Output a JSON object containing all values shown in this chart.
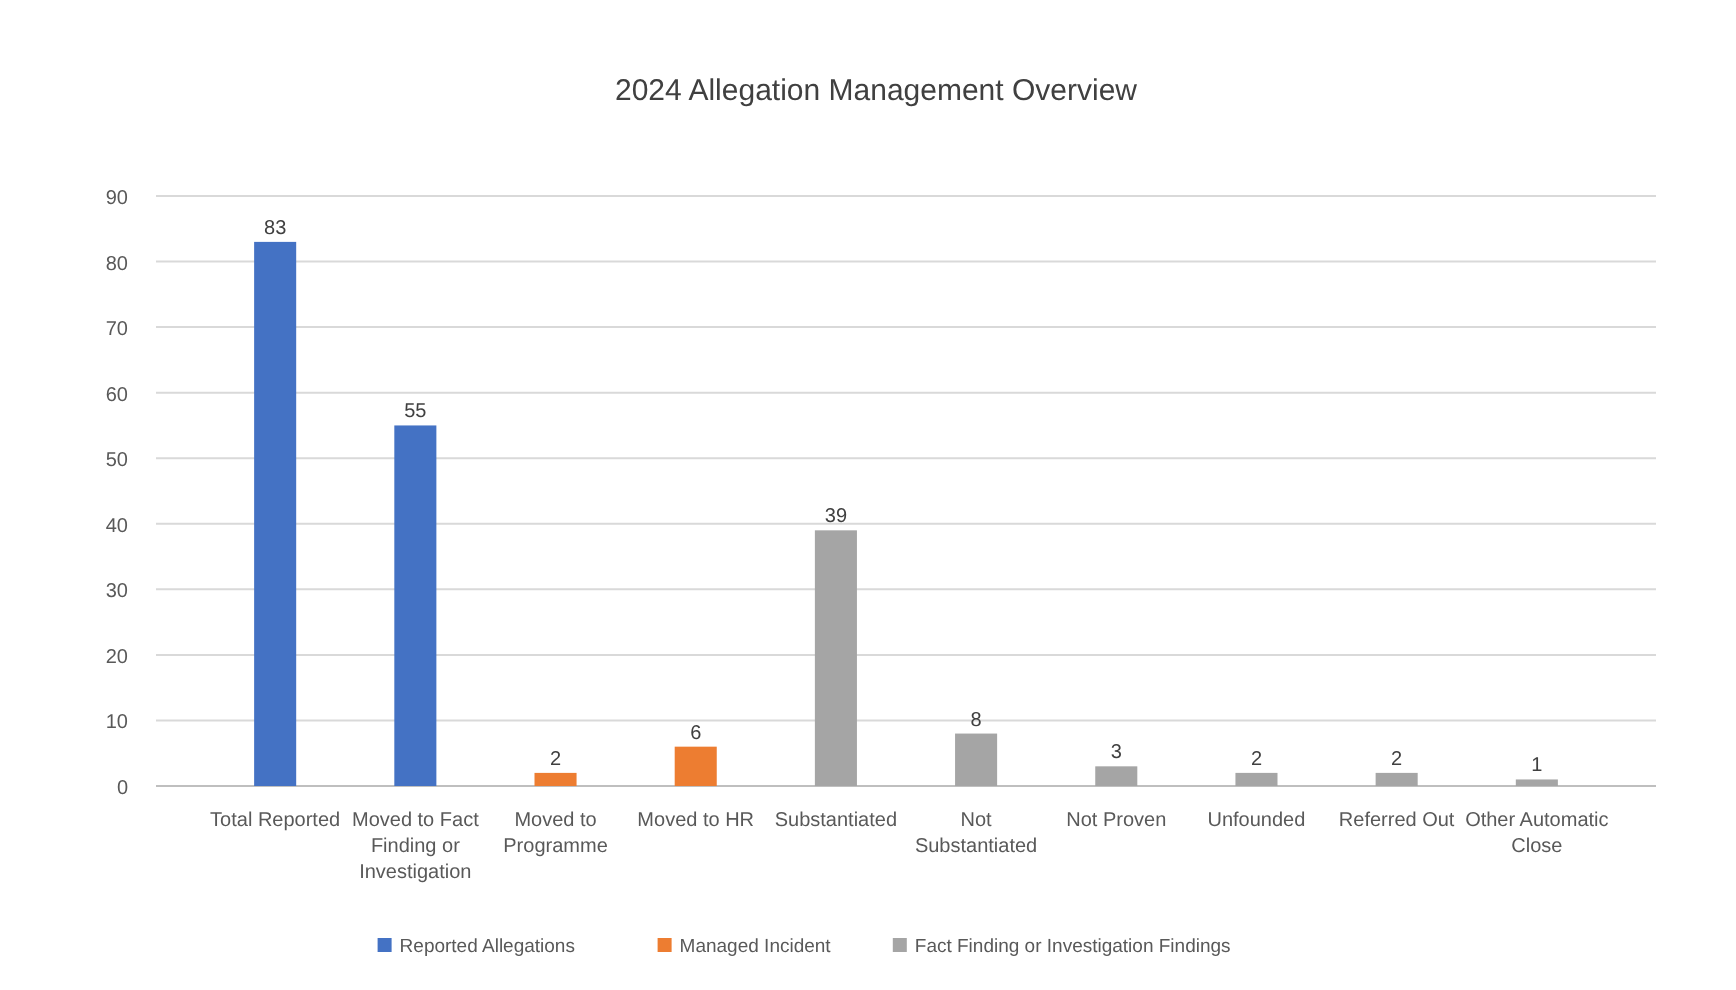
{
  "chart_data": {
    "type": "bar",
    "title": "2024 Allegation Management Overview",
    "categories": [
      "Total Reported",
      "Moved to Fact Finding or Investigation",
      "Moved to Programme",
      "Moved to HR",
      "Substantiated",
      "Not Substantiated",
      "Not Proven",
      "Unfounded",
      "Referred Out",
      "Other Automatic Close"
    ],
    "series": [
      {
        "name": "Reported Allegations",
        "color": "#4472c4",
        "values": [
          83,
          55,
          null,
          null,
          null,
          null,
          null,
          null,
          null,
          null
        ]
      },
      {
        "name": "Managed Incident",
        "color": "#ed7d31",
        "values": [
          null,
          null,
          2,
          6,
          null,
          null,
          null,
          null,
          null,
          null
        ]
      },
      {
        "name": "Fact Finding or Investigation Findings",
        "color": "#a5a5a5",
        "values": [
          null,
          null,
          null,
          null,
          39,
          8,
          3,
          2,
          2,
          1
        ]
      }
    ],
    "stacked": true,
    "ylim": [
      0,
      90
    ],
    "yticks": [
      0,
      10,
      20,
      30,
      40,
      50,
      60,
      70,
      80,
      90
    ],
    "grid": "y",
    "legend": "bottom",
    "data_labels": true
  }
}
